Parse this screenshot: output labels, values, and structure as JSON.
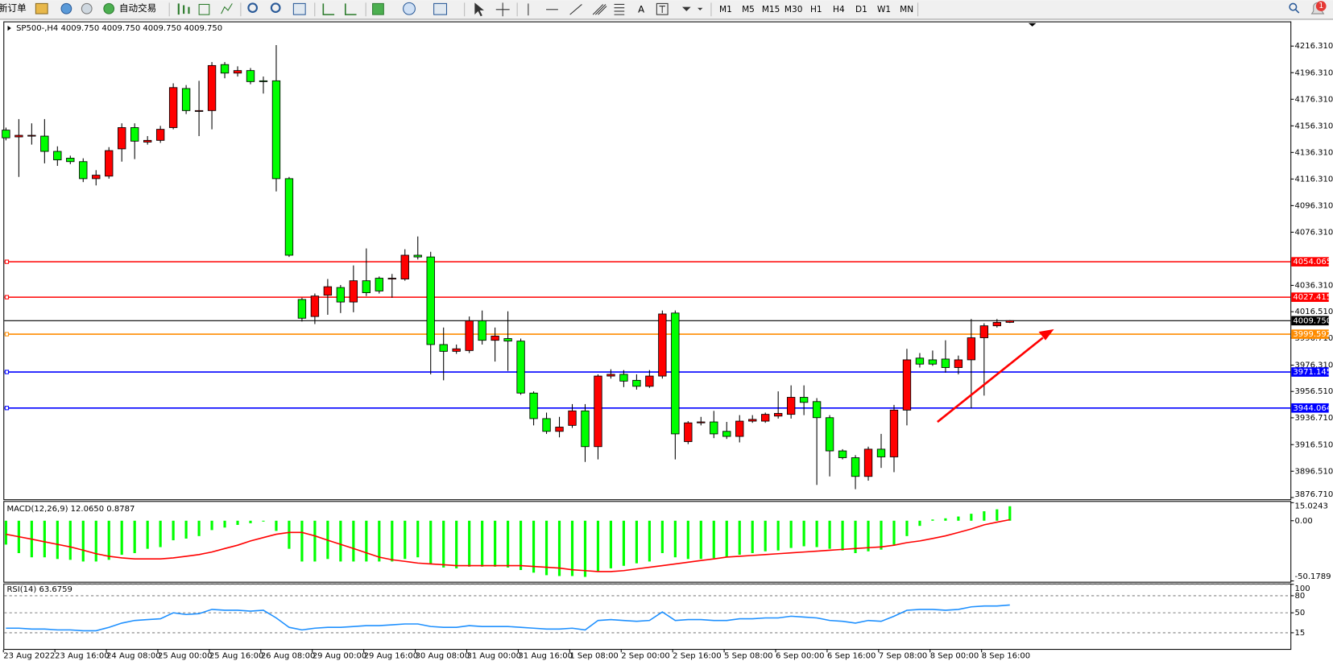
{
  "toolbar": {
    "new_order": "新订单",
    "auto_trading": "自动交易",
    "text_tool": "A",
    "timeframes": [
      "M1",
      "M5",
      "M15",
      "M30",
      "H1",
      "H4",
      "D1",
      "W1",
      "MN"
    ],
    "notifications": "1"
  },
  "chart_data": [
    {
      "type": "candlestick",
      "title": "SP500-,H4  4009.750 4009.750 4009.750 4009.750",
      "up_color": "#ff0000",
      "down_color": "#00ff00",
      "categories": [
        "23 Aug 2022",
        null,
        null,
        null,
        "23 Aug 16:00",
        null,
        null,
        null,
        "24 Aug 08:00",
        null,
        null,
        null,
        "25 Aug 00:00",
        null,
        null,
        null,
        "25 Aug 16:00",
        null,
        null,
        null,
        "26 Aug 08:00",
        null,
        null,
        null,
        "29 Aug 00:00",
        null,
        null,
        null,
        "29 Aug 16:00",
        null,
        null,
        null,
        "30 Aug 08:00",
        null,
        null,
        null,
        "31 Aug 00:00",
        null,
        null,
        null,
        "31 Aug 16:00",
        null,
        null,
        null,
        "1 Sep 08:00",
        null,
        null,
        null,
        "2 Sep 00:00",
        null,
        null,
        null,
        "2 Sep 16:00",
        null,
        null,
        null,
        "5 Sep 08:00",
        null,
        null,
        null,
        "6 Sep 00:00",
        null,
        null,
        null,
        "6 Sep 16:00",
        null,
        null,
        null,
        "7 Sep 08:00",
        null,
        null,
        null,
        "8 Sep 00:00",
        null,
        null,
        null,
        "8 Sep 16:00",
        null,
        null
      ],
      "values": [
        [
          4153.1,
          4155.0,
          4145.4,
          4147.3
        ],
        [
          4148.0,
          4161.4,
          4117.9,
          4149.2
        ],
        [
          4148.6,
          4158.2,
          4142.2,
          4149.2
        ],
        [
          4148.6,
          4161.4,
          4128.1,
          4137.1
        ],
        [
          4137.1,
          4140.9,
          4126.2,
          4130.7
        ],
        [
          4132.0,
          4133.9,
          4127.5,
          4129.4
        ],
        [
          4129.4,
          4131.9,
          4114.0,
          4116.6
        ],
        [
          4116.6,
          4123.0,
          4111.5,
          4119.2
        ],
        [
          4118.5,
          4140.3,
          4116.6,
          4137.7
        ],
        [
          4139.0,
          4158.2,
          4129.4,
          4155.0
        ],
        [
          4155.0,
          4158.2,
          4131.3,
          4144.8
        ],
        [
          4144.1,
          4148.6,
          4142.2,
          4145.4
        ],
        [
          4145.4,
          4156.3,
          4143.5,
          4153.7
        ],
        [
          4155.0,
          4188.3,
          4153.7,
          4185.1
        ],
        [
          4184.4,
          4187.0,
          4165.2,
          4167.8
        ],
        [
          4167.2,
          4190.2,
          4148.6,
          4167.8
        ],
        [
          4167.8,
          4204.3,
          4153.7,
          4201.7
        ],
        [
          4202.4,
          4204.3,
          4192.1,
          4196.0
        ],
        [
          4196.0,
          4201.1,
          4193.4,
          4197.9
        ],
        [
          4197.9,
          4199.8,
          4187.6,
          4189.6
        ],
        [
          4190.2,
          4193.4,
          4180.6,
          4189.6
        ],
        [
          4190.2,
          4217.1,
          4107.0,
          4116.6
        ],
        [
          4116.6,
          4117.9,
          4057.7,
          4059.0
        ],
        [
          4025.7,
          4027.0,
          4009.1,
          4011.6
        ],
        [
          4012.9,
          4030.2,
          4007.2,
          4028.3
        ],
        [
          4028.9,
          4041.1,
          4014.2,
          4035.3
        ],
        [
          4034.7,
          4036.6,
          4015.5,
          4023.8
        ],
        [
          4023.8,
          4051.3,
          4016.1,
          4039.8
        ],
        [
          4039.8,
          4064.1,
          4028.3,
          4030.8
        ],
        [
          4041.7,
          4043.0,
          4030.2,
          4032.1
        ],
        [
          4041.1,
          4044.9,
          4027.0,
          4041.7
        ],
        [
          4041.1,
          4063.5,
          4039.8,
          4059.0
        ],
        [
          4059.0,
          4073.1,
          4055.8,
          4057.7
        ],
        [
          4057.7,
          4061.6,
          3969.4,
          3991.8
        ],
        [
          3991.8,
          4004.6,
          3964.9,
          3986.7
        ],
        [
          3986.7,
          3991.8,
          3984.8,
          3988.6
        ],
        [
          3987.3,
          4012.9,
          3985.4,
          4009.7
        ],
        [
          4009.7,
          4017.4,
          3991.8,
          3995.0
        ],
        [
          3995.0,
          4004.6,
          3979.0,
          3998.2
        ],
        [
          3996.3,
          4016.8,
          3972.0,
          3994.4
        ],
        [
          3994.4,
          3996.3,
          3954.0,
          3955.3
        ],
        [
          3955.3,
          3956.6,
          3931.0,
          3936.1
        ],
        [
          3936.1,
          3940.6,
          3924.6,
          3926.5
        ],
        [
          3926.5,
          3937.4,
          3922.0,
          3929.7
        ],
        [
          3931.0,
          3947.0,
          3929.1,
          3941.9
        ],
        [
          3941.9,
          3947.0,
          3903.5,
          3915.0
        ],
        [
          3915.0,
          3969.4,
          3905.4,
          3968.1
        ],
        [
          3968.1,
          3973.2,
          3966.2,
          3969.4
        ],
        [
          3969.4,
          3972.6,
          3959.8,
          3964.3
        ],
        [
          3964.9,
          3969.4,
          3957.9,
          3960.4
        ],
        [
          3960.4,
          3972.6,
          3959.2,
          3968.1
        ],
        [
          3968.1,
          4017.4,
          3966.2,
          4014.8
        ],
        [
          4015.5,
          4017.4,
          3905.4,
          3924.6
        ],
        [
          3918.8,
          3934.2,
          3916.9,
          3932.9
        ],
        [
          3932.9,
          3937.4,
          3931.0,
          3933.6
        ],
        [
          3933.6,
          3941.9,
          3921.4,
          3924.6
        ],
        [
          3926.5,
          3933.6,
          3920.8,
          3922.7
        ],
        [
          3922.7,
          3938.7,
          3918.2,
          3934.2
        ],
        [
          3934.2,
          3938.7,
          3932.9,
          3935.5
        ],
        [
          3934.2,
          3940.6,
          3932.9,
          3939.3
        ],
        [
          3938.0,
          3956.6,
          3936.1,
          3940.0
        ],
        [
          3939.3,
          3961.1,
          3936.1,
          3952.1
        ],
        [
          3952.1,
          3961.1,
          3938.7,
          3948.3
        ],
        [
          3948.9,
          3951.5,
          3886.2,
          3936.8
        ],
        [
          3936.8,
          3938.7,
          3892.6,
          3911.8
        ],
        [
          3911.8,
          3913.1,
          3905.4,
          3906.7
        ],
        [
          3906.7,
          3908.6,
          3883.0,
          3892.6
        ],
        [
          3892.6,
          3915.0,
          3889.4,
          3913.1
        ],
        [
          3913.1,
          3924.6,
          3899.0,
          3907.3
        ],
        [
          3907.3,
          3946.4,
          3895.8,
          3942.5
        ],
        [
          3942.5,
          3988.6,
          3931.0,
          3980.3
        ],
        [
          3981.6,
          3985.4,
          3974.5,
          3977.1
        ],
        [
          3980.3,
          3987.3,
          3975.8,
          3977.1
        ],
        [
          3980.9,
          3995.0,
          3970.7,
          3974.5
        ],
        [
          3974.5,
          3983.5,
          3969.4,
          3980.3
        ],
        [
          3980.3,
          4011.0,
          3943.8,
          3996.9
        ],
        [
          3996.9,
          4007.8,
          3953.4,
          4005.9
        ],
        [
          4005.9,
          4011.0,
          4004.6,
          4008.5
        ],
        [
          4008.5,
          4010.2,
          4008.0,
          4009.75
        ]
      ],
      "ylim": [
        3875.4,
        4233.6
      ],
      "yticks": [
        {
          "value": 4216.31,
          "label": "4216.310"
        },
        {
          "value": 4196.31,
          "label": "4196.310"
        },
        {
          "value": 4176.31,
          "label": "4176.310"
        },
        {
          "value": 4156.31,
          "label": "4156.310"
        },
        {
          "value": 4136.31,
          "label": "4136.310"
        },
        {
          "value": 4116.31,
          "label": "4116.310"
        },
        {
          "value": 4096.31,
          "label": "4096.310"
        },
        {
          "value": 4076.31,
          "label": "4076.310"
        },
        {
          "value": 4036.31,
          "label": "4036.310"
        },
        {
          "value": 4016.51,
          "label": "4016.510"
        },
        {
          "value": 3996.71,
          "label": "3996.710"
        },
        {
          "value": 3976.31,
          "label": "3976.310"
        },
        {
          "value": 3956.51,
          "label": "3956.510"
        },
        {
          "value": 3936.71,
          "label": "3936.710"
        },
        {
          "value": 3916.51,
          "label": "3916.510"
        },
        {
          "value": 3896.51,
          "label": "3896.510"
        },
        {
          "value": 3876.71,
          "label": "3876.710"
        }
      ],
      "grid": false,
      "last_price": {
        "value": 4009.75,
        "label": "4009.750"
      },
      "levels": [
        {
          "value": 4054.065,
          "color": "#ff0000"
        },
        {
          "value": 4027.415,
          "color": "#ff0000"
        },
        {
          "value": 3999.592,
          "color": "#ff8c00"
        },
        {
          "value": 3971.145,
          "color": "#0000ff"
        },
        {
          "value": 3944.064,
          "color": "#0000ff"
        }
      ]
    },
    {
      "type": "macd",
      "title": "MACD(12,26,9) 12.0650 0.8787",
      "series": [
        {
          "style": "bar",
          "color": "#00ff00",
          "values": [
            -19.9,
            -27.0,
            -30.5,
            -30.5,
            -31.9,
            -32.6,
            -34.0,
            -34.0,
            -32.6,
            -28.4,
            -27.0,
            -23.4,
            -22.0,
            -16.3,
            -14.9,
            -12.8,
            -7.8,
            -5.7,
            -3.5,
            -2.1,
            -0.7,
            -8.5,
            -23.4,
            -34.0,
            -34.0,
            -31.9,
            -34.0,
            -34.0,
            -34.0,
            -34.0,
            -34.0,
            -31.9,
            -30.5,
            -36.3,
            -39.0,
            -39.7,
            -38.3,
            -38.3,
            -38.3,
            -39.0,
            -41.1,
            -43.3,
            -45.4,
            -46.1,
            -46.1,
            -46.8,
            -42.6,
            -39.7,
            -37.6,
            -35.5,
            -34.0,
            -27.0,
            -30.5,
            -31.9,
            -31.9,
            -31.2,
            -30.5,
            -28.4,
            -27.0,
            -25.5,
            -24.8,
            -22.7,
            -21.3,
            -22.0,
            -23.4,
            -24.8,
            -27.0,
            -25.5,
            -24.1,
            -19.9,
            -12.8,
            -4.3,
            1.0,
            2.0,
            3.5,
            5.8,
            7.9,
            9.5,
            12.065
          ]
        },
        {
          "style": "line",
          "color": "#ff0000",
          "values": [
            -11.3,
            -13.3,
            -15.4,
            -17.6,
            -19.7,
            -21.8,
            -24.6,
            -27.5,
            -29.6,
            -31.0,
            -31.8,
            -31.8,
            -31.8,
            -31.0,
            -29.6,
            -28.2,
            -26.1,
            -23.2,
            -20.4,
            -16.9,
            -14.0,
            -11.3,
            -9.8,
            -9.8,
            -12.6,
            -16.2,
            -19.7,
            -23.2,
            -26.8,
            -30.3,
            -32.5,
            -33.9,
            -35.3,
            -36.0,
            -36.7,
            -37.4,
            -37.4,
            -37.4,
            -37.4,
            -37.4,
            -37.4,
            -38.1,
            -38.8,
            -39.5,
            -40.9,
            -41.6,
            -42.4,
            -42.4,
            -41.6,
            -40.2,
            -38.8,
            -37.4,
            -36.0,
            -34.6,
            -33.2,
            -31.8,
            -30.3,
            -29.6,
            -28.9,
            -28.2,
            -27.5,
            -26.8,
            -26.1,
            -25.4,
            -24.6,
            -23.9,
            -23.2,
            -22.5,
            -21.8,
            -20.4,
            -18.3,
            -16.9,
            -14.8,
            -12.6,
            -9.8,
            -6.9,
            -3.4,
            -1.2,
            0.8787
          ]
        }
      ],
      "ylim": [
        -50.1789,
        15.0243
      ],
      "yticks": [
        15.0243,
        {
          "value": 0,
          "label": "0.00"
        },
        -50.1789
      ],
      "grid": false
    },
    {
      "type": "line",
      "title": "RSI(14) 63.6759",
      "series": [
        {
          "style": "line",
          "color": "#1e90ff",
          "values": [
            23,
            23,
            21.5,
            21.5,
            20,
            20,
            18.5,
            18.5,
            24.5,
            32,
            36.5,
            38,
            39.5,
            50,
            47,
            48.5,
            56,
            54.5,
            54.5,
            53,
            54.5,
            41,
            24.5,
            20,
            23,
            24.5,
            24.5,
            26,
            27.5,
            27.5,
            29,
            30.5,
            30.5,
            26,
            24.5,
            24.5,
            27.5,
            26,
            26,
            26,
            24.5,
            23,
            21.5,
            21.5,
            23,
            20,
            36.5,
            38,
            36.5,
            35,
            36.5,
            51.5,
            36.5,
            38,
            38,
            36.5,
            36.5,
            39.5,
            39.5,
            41,
            41,
            44,
            42.5,
            41,
            36.5,
            35,
            32,
            36.5,
            35,
            44,
            54.5,
            56,
            56,
            54.5,
            56,
            60.5,
            62,
            62,
            63.6759
          ]
        }
      ],
      "ylim": [
        0,
        100
      ],
      "yticks": [
        100,
        80,
        50,
        15
      ],
      "grid": true
    }
  ]
}
